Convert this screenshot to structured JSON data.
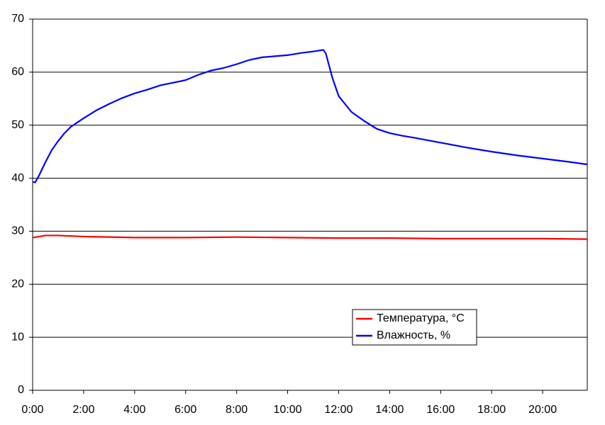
{
  "chart_data": {
    "type": "line",
    "xlim": [
      0,
      21.75
    ],
    "xticks": [
      {
        "value": 0,
        "label": "0:00"
      },
      {
        "value": 2,
        "label": "2:00"
      },
      {
        "value": 4,
        "label": "4:00"
      },
      {
        "value": 6,
        "label": "6:00"
      },
      {
        "value": 8,
        "label": "8:00"
      },
      {
        "value": 10,
        "label": "10:00"
      },
      {
        "value": 12,
        "label": "12:00"
      },
      {
        "value": 14,
        "label": "14:00"
      },
      {
        "value": 16,
        "label": "16:00"
      },
      {
        "value": 18,
        "label": "18:00"
      },
      {
        "value": 20,
        "label": "20:00"
      }
    ],
    "ylim": [
      0,
      70
    ],
    "yticks": [
      0,
      10,
      20,
      30,
      40,
      50,
      60,
      70
    ],
    "grid": true,
    "legend": "lower-right",
    "series": [
      {
        "name": "Температура, °C",
        "color": "#ff0000",
        "x": [
          0,
          0.5,
          1,
          2,
          4,
          6,
          8,
          10,
          12,
          14,
          16,
          18,
          20,
          21.75
        ],
        "values": [
          28.8,
          29.2,
          29.2,
          29.0,
          28.8,
          28.8,
          28.9,
          28.8,
          28.7,
          28.7,
          28.6,
          28.6,
          28.6,
          28.5
        ]
      },
      {
        "name": "Влажность, %",
        "color": "#0000ff",
        "x": [
          0,
          0.1,
          0.25,
          0.5,
          0.75,
          1,
          1.25,
          1.5,
          2,
          2.5,
          3,
          3.5,
          4,
          4.5,
          5,
          5.5,
          6,
          6.5,
          7,
          7.5,
          8,
          8.5,
          9,
          9.5,
          10,
          10.5,
          11,
          11.4,
          11.5,
          11.75,
          12,
          12.5,
          13,
          13.5,
          14,
          14.5,
          15,
          16,
          17,
          18,
          19,
          20,
          21,
          21.75
        ],
        "values": [
          39.3,
          39.2,
          40.5,
          43,
          45.3,
          47,
          48.5,
          49.7,
          51.3,
          52.8,
          54,
          55.1,
          56,
          56.7,
          57.5,
          58,
          58.5,
          59.5,
          60.3,
          60.8,
          61.5,
          62.3,
          62.8,
          63,
          63.2,
          63.6,
          63.9,
          64.2,
          63.5,
          59,
          55.5,
          52.5,
          50.8,
          49.3,
          48.5,
          48,
          47.6,
          46.7,
          45.8,
          45,
          44.3,
          43.7,
          43.1,
          42.6
        ]
      }
    ]
  }
}
